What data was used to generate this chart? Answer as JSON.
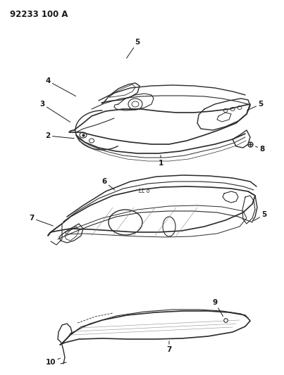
{
  "title": "92233 100 A",
  "background_color": "#ffffff",
  "line_color": "#2a2a2a",
  "text_color": "#1a1a1a",
  "fig_width": 4.03,
  "fig_height": 5.33,
  "dpi": 100
}
